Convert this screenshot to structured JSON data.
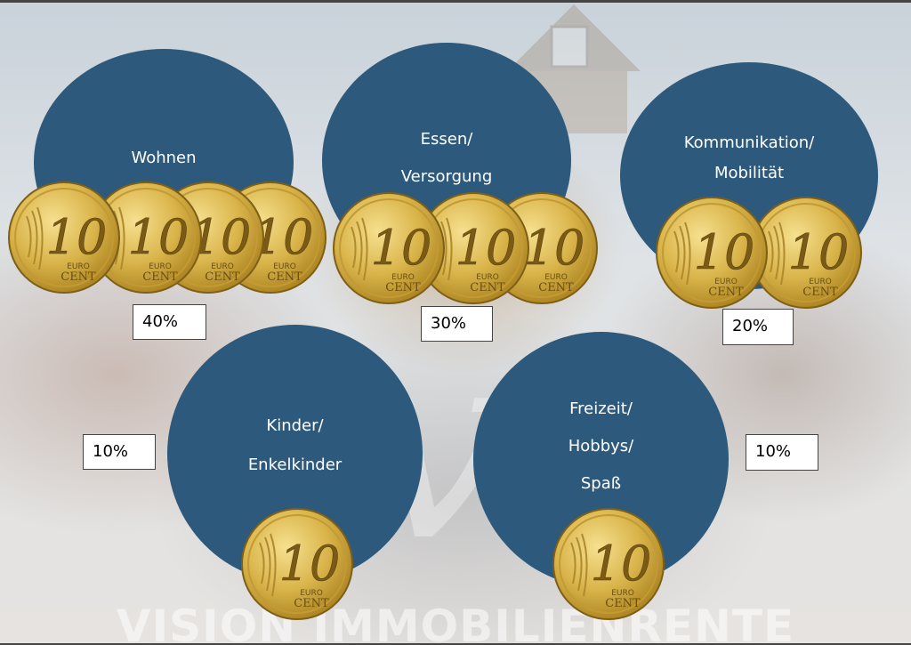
{
  "categories": [
    {
      "id": "wohnen",
      "lines": [
        "Wohnen"
      ],
      "percent": "40%",
      "coins": 4
    },
    {
      "id": "essen",
      "lines": [
        "Essen/",
        "Versorgung"
      ],
      "percent": "30%",
      "coins": 3
    },
    {
      "id": "kommunikation",
      "lines": [
        "Kommunikation/",
        "Mobilität"
      ],
      "percent": "20%",
      "coins": 2
    },
    {
      "id": "kinder",
      "lines": [
        "Kinder/",
        "Enkelkinder"
      ],
      "percent": "10%",
      "coins": 1
    },
    {
      "id": "freizeit",
      "lines": [
        "Freizeit/",
        "Hobbys/",
        "Spaß"
      ],
      "percent": "10%",
      "coins": 1
    }
  ],
  "coin": {
    "value": "10",
    "line1": "EURO",
    "line2": "CENT"
  },
  "watermark": {
    "text": "VISION IMMOBILIENRENTE"
  },
  "colors": {
    "circle": "#2d5a7c",
    "coin_gold": "#d9b44a",
    "coin_dark": "#a8801e"
  }
}
